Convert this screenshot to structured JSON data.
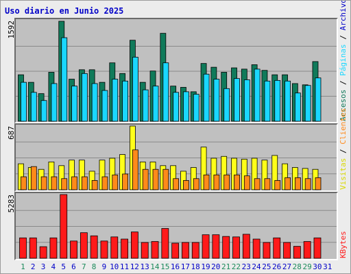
{
  "title": "Uso diario en Junio 2025",
  "colors": {
    "accesos": "#107a5a",
    "paginas": "#1ad7ff",
    "archivos": "#0000c8",
    "visitas": "#ffff1a",
    "clientes": "#ff8a1a",
    "kbytes": "#ff1a1a",
    "weekend_day": "#1a8a5a",
    "weekday": "#0000c8"
  },
  "chart_data": [
    {
      "type": "bar",
      "name": "hits",
      "ymax_label": "1592",
      "ylim": [
        0,
        1592
      ],
      "categories": [
        "1",
        "2",
        "3",
        "4",
        "5",
        "6",
        "7",
        "8",
        "9",
        "10",
        "11",
        "12",
        "13",
        "14",
        "15",
        "16",
        "17",
        "18",
        "19",
        "20",
        "21",
        "22",
        "23",
        "24",
        "25",
        "26",
        "27",
        "28",
        "29",
        "30",
        "31"
      ],
      "legend": [
        "Accesos",
        "Páginas",
        "Archivos"
      ],
      "series": [
        {
          "name": "Accesos",
          "values": [
            740,
            620,
            440,
            780,
            1592,
            670,
            820,
            820,
            620,
            930,
            760,
            1290,
            620,
            800,
            1400,
            560,
            540,
            470,
            920,
            860,
            780,
            850,
            830,
            900,
            810,
            740,
            740,
            600,
            580,
            950,
            0
          ]
        },
        {
          "name": "Páginas",
          "values": [
            620,
            460,
            330,
            600,
            1330,
            560,
            760,
            600,
            490,
            670,
            640,
            1020,
            500,
            560,
            930,
            460,
            470,
            430,
            750,
            670,
            520,
            680,
            660,
            830,
            640,
            650,
            640,
            450,
            570,
            690,
            0
          ]
        },
        {
          "name": "Archivos",
          "values": [
            0,
            0,
            0,
            0,
            0,
            0,
            0,
            0,
            0,
            0,
            0,
            0,
            0,
            0,
            0,
            0,
            0,
            0,
            0,
            0,
            0,
            0,
            0,
            0,
            0,
            0,
            0,
            0,
            0,
            0,
            0
          ]
        }
      ]
    },
    {
      "type": "bar",
      "name": "visits",
      "ymax_label": "687",
      "ylim": [
        0,
        687
      ],
      "categories": [
        "1",
        "2",
        "3",
        "4",
        "5",
        "6",
        "7",
        "8",
        "9",
        "10",
        "11",
        "12",
        "13",
        "14",
        "15",
        "16",
        "17",
        "18",
        "19",
        "20",
        "21",
        "22",
        "23",
        "24",
        "25",
        "26",
        "27",
        "28",
        "29",
        "30",
        "31"
      ],
      "legend": [
        "Visitas",
        "Clientes"
      ],
      "series": [
        {
          "name": "Visitas",
          "values": [
            280,
            240,
            220,
            300,
            260,
            320,
            320,
            200,
            320,
            340,
            380,
            687,
            300,
            300,
            260,
            260,
            200,
            240,
            460,
            340,
            360,
            340,
            330,
            340,
            320,
            370,
            280,
            240,
            230,
            220,
            0
          ]
        },
        {
          "name": "Clientes",
          "values": [
            140,
            250,
            140,
            140,
            120,
            140,
            140,
            100,
            140,
            160,
            170,
            430,
            220,
            220,
            220,
            120,
            100,
            120,
            160,
            160,
            160,
            160,
            150,
            120,
            120,
            100,
            130,
            130,
            120,
            130,
            0
          ]
        }
      ]
    },
    {
      "type": "bar",
      "name": "kbytes",
      "ymax_label": "5283",
      "ylim": [
        0,
        5283
      ],
      "categories": [
        "1",
        "2",
        "3",
        "4",
        "5",
        "6",
        "7",
        "8",
        "9",
        "10",
        "11",
        "12",
        "13",
        "14",
        "15",
        "16",
        "17",
        "18",
        "19",
        "20",
        "21",
        "22",
        "23",
        "24",
        "25",
        "26",
        "27",
        "28",
        "29",
        "30",
        "31"
      ],
      "legend": [
        "KBytes"
      ],
      "series": [
        {
          "name": "KBytes",
          "values": [
            1690,
            1690,
            960,
            1690,
            5283,
            1430,
            2120,
            1860,
            1430,
            1770,
            1590,
            2180,
            1310,
            1390,
            2470,
            1250,
            1310,
            1310,
            1950,
            1950,
            1810,
            1770,
            1990,
            1590,
            1310,
            1690,
            1310,
            990,
            1390,
            1690,
            0
          ]
        }
      ]
    }
  ]
}
